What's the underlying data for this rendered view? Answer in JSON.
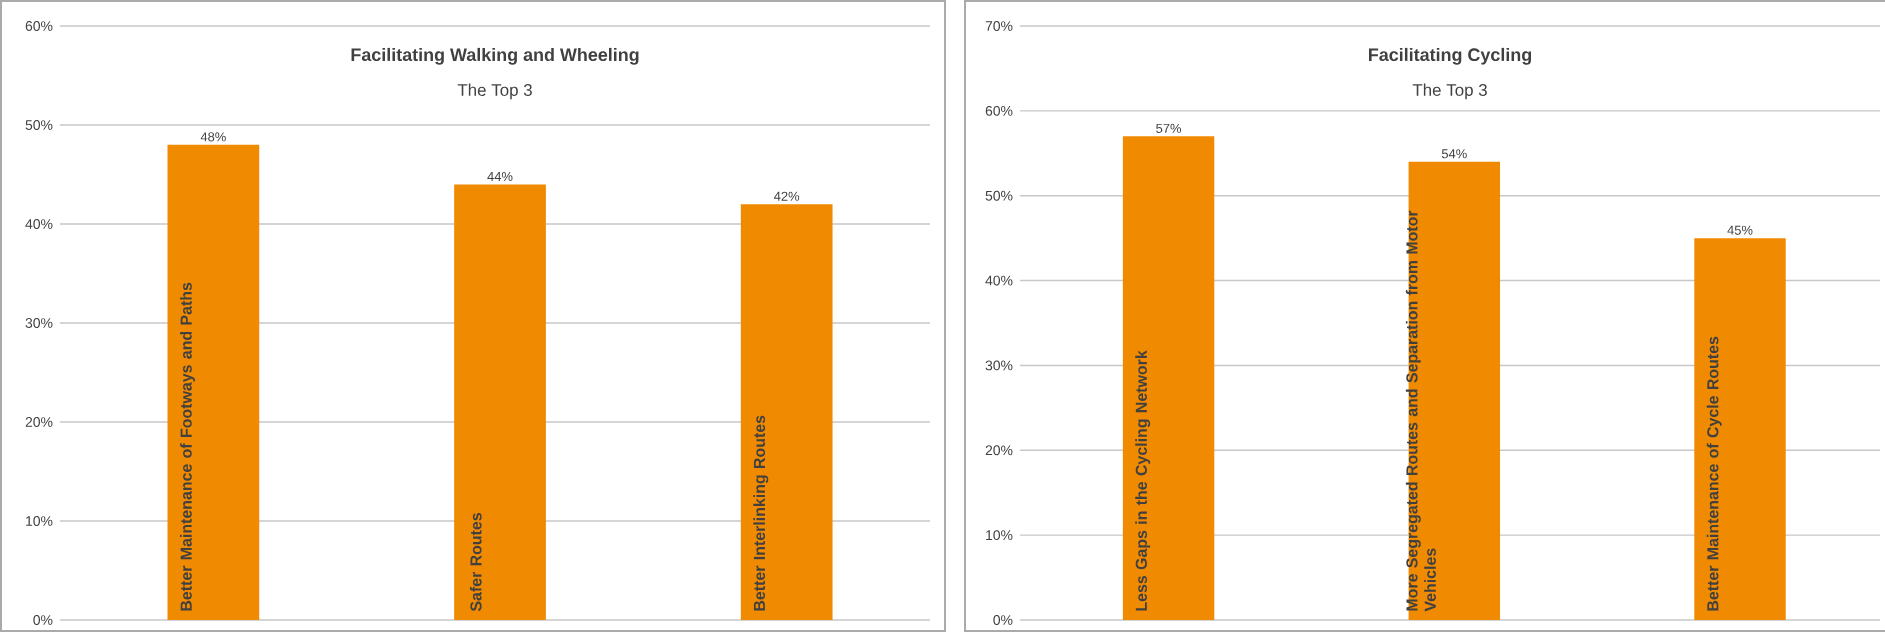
{
  "chart_data": [
    {
      "type": "bar",
      "title": "Facilitating Walking and Wheeling",
      "subtitle": "The Top 3",
      "categories": [
        "Better Maintenance of Footways and Paths",
        "Safer Routes",
        "Better Interlinking Routes"
      ],
      "values": [
        48,
        44,
        42
      ],
      "color": "#f08a00",
      "value_labels": [
        "48%",
        "44%",
        "42%"
      ],
      "ylim": [
        0,
        60
      ],
      "yticks": [
        {
          "value": 0,
          "label": "0%"
        },
        {
          "value": 10,
          "label": "10%"
        },
        {
          "value": 20,
          "label": "20%"
        },
        {
          "value": 30,
          "label": "30%"
        },
        {
          "value": 40,
          "label": "40%"
        },
        {
          "value": 50,
          "label": "50%"
        },
        {
          "value": 60,
          "label": "60%"
        }
      ],
      "grid": "y"
    },
    {
      "type": "bar",
      "title": "Facilitating Cycling",
      "subtitle": "The Top 3",
      "categories": [
        "Less Gaps in the Cycling Network",
        "More Segregated Routes and Separation from Motor Vehicles",
        "Better Maintenance of Cycle Routes"
      ],
      "values": [
        57,
        54,
        45
      ],
      "color": "#f08a00",
      "value_labels": [
        "57%",
        "54%",
        "45%"
      ],
      "ylim": [
        0,
        70
      ],
      "yticks": [
        {
          "value": 0,
          "label": "0%"
        },
        {
          "value": 10,
          "label": "10%"
        },
        {
          "value": 20,
          "label": "20%"
        },
        {
          "value": 30,
          "label": "30%"
        },
        {
          "value": 40,
          "label": "40%"
        },
        {
          "value": 50,
          "label": "50%"
        },
        {
          "value": 60,
          "label": "60%"
        },
        {
          "value": 70,
          "label": "70%"
        }
      ],
      "grid": "y"
    }
  ]
}
